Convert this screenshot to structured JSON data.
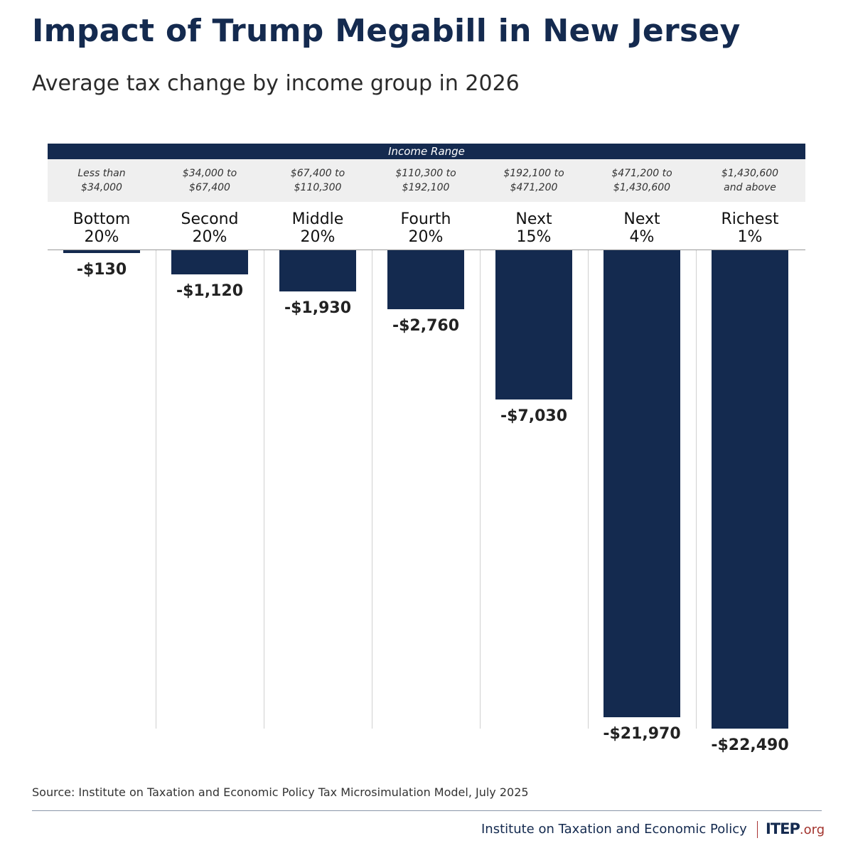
{
  "title": "Impact of Trump Megabill in New Jersey",
  "subtitle": "Average tax change by income group in 2026",
  "source": "Source: Institute on Taxation and Economic Policy Tax Microsimulation Model, July 2025",
  "footer": {
    "org": "Institute on Taxation and Economic Policy",
    "logo": "ITEP",
    "logo_suffix": ".org"
  },
  "chart_data": {
    "type": "bar",
    "header": "Income Range",
    "categories": [
      "Bottom 20%",
      "Second 20%",
      "Middle 20%",
      "Fourth 20%",
      "Next 15%",
      "Next 4%",
      "Richest 1%"
    ],
    "group_lines": [
      [
        "Bottom",
        "20%"
      ],
      [
        "Second",
        "20%"
      ],
      [
        "Middle",
        "20%"
      ],
      [
        "Fourth",
        "20%"
      ],
      [
        "Next",
        "15%"
      ],
      [
        "Next",
        "4%"
      ],
      [
        "Richest",
        "1%"
      ]
    ],
    "income_ranges": [
      [
        "Less than",
        "$34,000"
      ],
      [
        "$34,000 to",
        "$67,400"
      ],
      [
        "$67,400 to",
        "$110,300"
      ],
      [
        "$110,300 to",
        "$192,100"
      ],
      [
        "$192,100 to",
        "$471,200"
      ],
      [
        "$471,200 to",
        "$1,430,600"
      ],
      [
        "$1,430,600",
        "and above"
      ]
    ],
    "values": [
      -130,
      -1120,
      -1930,
      -2760,
      -7030,
      -21970,
      -22490
    ],
    "labels": [
      "-$130",
      "-$1,120",
      "-$1,930",
      "-$2,760",
      "-$7,030",
      "-$21,970",
      "-$22,490"
    ],
    "ylim": [
      -22490,
      0
    ],
    "bar_color": "#142a4f"
  }
}
